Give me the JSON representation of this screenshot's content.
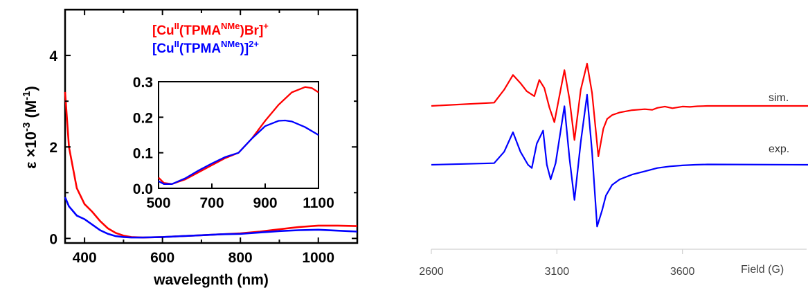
{
  "chart_data": [
    {
      "type": "line",
      "xlabel": "wavelegnth (nm)",
      "ylabel": "ε ×10^-3 (M^-1)",
      "xlim": [
        350,
        1100
      ],
      "ylim": [
        -0.1,
        5
      ],
      "x_ticks": [
        "400",
        "600",
        "800",
        "1000"
      ],
      "y_ticks": [
        "0",
        "2",
        "4"
      ],
      "legend": [
        {
          "parts": [
            "[Cu",
            "II",
            "(TPMA",
            "NMe",
            ")Br]",
            "+"
          ],
          "color": "#ff0000"
        },
        {
          "parts": [
            "[Cu",
            "II",
            "(TPMA",
            "NMe",
            ")]",
            "2+"
          ],
          "color": "#0000ff"
        }
      ],
      "series": [
        {
          "color": "#ff0000",
          "x": [
            350,
            360,
            380,
            400,
            420,
            440,
            460,
            480,
            500,
            520,
            550,
            600,
            650,
            700,
            750,
            800,
            850,
            900,
            950,
            1000,
            1050,
            1100
          ],
          "y": [
            3.2,
            2.0,
            1.1,
            0.75,
            0.58,
            0.38,
            0.22,
            0.12,
            0.06,
            0.03,
            0.02,
            0.03,
            0.05,
            0.07,
            0.09,
            0.11,
            0.15,
            0.2,
            0.25,
            0.28,
            0.28,
            0.27
          ]
        },
        {
          "color": "#0000ff",
          "x": [
            350,
            360,
            380,
            400,
            420,
            440,
            460,
            480,
            500,
            520,
            550,
            600,
            650,
            700,
            750,
            800,
            850,
            900,
            950,
            1000,
            1050,
            1100
          ],
          "y": [
            0.9,
            0.7,
            0.5,
            0.42,
            0.3,
            0.18,
            0.1,
            0.05,
            0.03,
            0.02,
            0.02,
            0.03,
            0.05,
            0.07,
            0.09,
            0.1,
            0.13,
            0.16,
            0.18,
            0.19,
            0.17,
            0.15
          ]
        }
      ],
      "inset": {
        "xlim": [
          500,
          1100
        ],
        "ylim": [
          0,
          0.3
        ],
        "x_ticks": [
          "500",
          "700",
          "900",
          "1100"
        ],
        "y_ticks": [
          "0.0",
          "0.1",
          "0.2",
          "0.3"
        ],
        "series": [
          {
            "color": "#ff0000",
            "x": [
              500,
              520,
              550,
              600,
              650,
              700,
              750,
              800,
              850,
              900,
              950,
              1000,
              1050,
              1075,
              1100
            ],
            "y": [
              0.03,
              0.015,
              0.012,
              0.025,
              0.045,
              0.065,
              0.085,
              0.1,
              0.14,
              0.19,
              0.235,
              0.27,
              0.285,
              0.282,
              0.27
            ]
          },
          {
            "color": "#0000ff",
            "x": [
              500,
              520,
              550,
              600,
              650,
              700,
              750,
              800,
              850,
              900,
              950,
              975,
              1000,
              1050,
              1100
            ],
            "y": [
              0.02,
              0.012,
              0.012,
              0.028,
              0.05,
              0.07,
              0.088,
              0.1,
              0.14,
              0.175,
              0.19,
              0.191,
              0.188,
              0.172,
              0.15
            ]
          }
        ]
      }
    },
    {
      "type": "line",
      "xlabel": "Field (G)",
      "xlim": [
        2600,
        4100
      ],
      "x_ticks": [
        "2600",
        "3100",
        "3600"
      ],
      "y_axis_shown": false,
      "annotations": [
        "sim.",
        "exp."
      ],
      "series": [
        {
          "name": "sim.",
          "color": "#ff0000",
          "offset": 1.0,
          "x": [
            2600,
            2850,
            2890,
            2925,
            2955,
            2980,
            3010,
            3030,
            3050,
            3070,
            3090,
            3105,
            3130,
            3150,
            3170,
            3195,
            3220,
            3240,
            3265,
            3285,
            3300,
            3320,
            3350,
            3400,
            3450,
            3480,
            3500,
            3530,
            3560,
            3600,
            3630,
            3660,
            3700,
            4100
          ],
          "y": [
            0,
            0.1,
            0.5,
            0.95,
            0.7,
            0.45,
            0.3,
            0.8,
            0.55,
            -0.05,
            -0.5,
            0.1,
            1.1,
            0.2,
            -1.05,
            0.5,
            1.3,
            0.4,
            -1.55,
            -0.7,
            -0.4,
            -0.28,
            -0.2,
            -0.13,
            -0.1,
            -0.12,
            -0.06,
            -0.02,
            -0.07,
            -0.02,
            -0.03,
            -0.01,
            0,
            0
          ]
        },
        {
          "name": "exp.",
          "color": "#0000ff",
          "offset": 0.0,
          "x": [
            2600,
            2850,
            2890,
            2925,
            2955,
            2985,
            3000,
            3020,
            3045,
            3060,
            3075,
            3095,
            3130,
            3150,
            3170,
            3195,
            3220,
            3240,
            3260,
            3280,
            3295,
            3320,
            3350,
            3400,
            3450,
            3500,
            3550,
            3600,
            3650,
            3700,
            4100
          ],
          "y": [
            0,
            0.05,
            0.4,
            1.0,
            0.4,
            0.0,
            -0.1,
            0.65,
            1.05,
            0.0,
            -0.45,
            0.05,
            1.8,
            0.2,
            -1.08,
            0.7,
            2.15,
            0.4,
            -1.9,
            -1.4,
            -0.95,
            -0.62,
            -0.45,
            -0.3,
            -0.2,
            -0.1,
            -0.05,
            -0.02,
            0,
            0.01,
            0
          ]
        }
      ]
    }
  ]
}
